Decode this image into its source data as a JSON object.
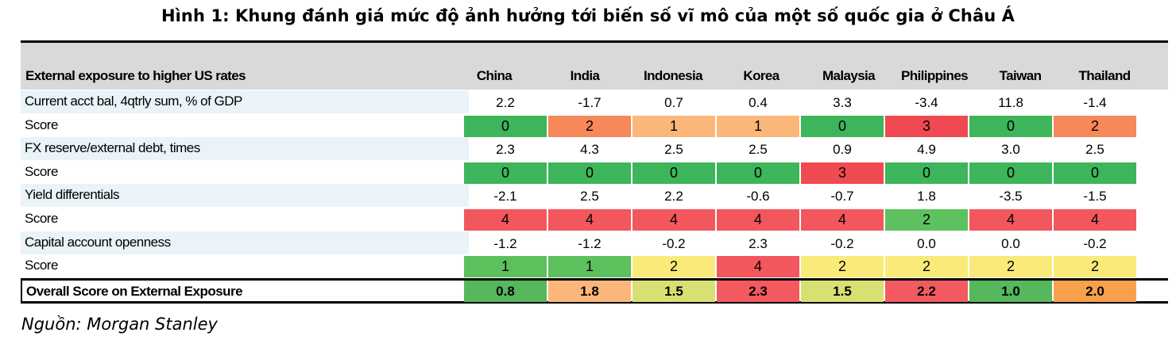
{
  "title": "Hình 1: Khung đánh giá mức độ ảnh hưởng tới biến số vĩ mô của một số quốc gia ở Châu Á",
  "source": "Nguồn: Morgan Stanley",
  "colors": {
    "score_0": "#3cb55b",
    "score_1": "#5cc05d",
    "score_2_orange": "#f7885a",
    "score_1_peach": "#fbb779",
    "score_3": "#ef4a52",
    "score_4": "#f2575d",
    "score_2_yellow": "#f9ea7a",
    "score_2_green": "#5ec15f",
    "overall_green": "#55b85c",
    "overall_orange": "#fbb77a",
    "overall_yellow": "#d8e072",
    "overall_red": "#f25a5f",
    "overall_amber": "#f8a14c",
    "header_bg": "#d9d9d9",
    "label_shade": "#eaf3f8"
  },
  "table": {
    "header_label": "External exposure to higher US rates",
    "columns": [
      "China",
      "India",
      "Indonesia",
      "Korea",
      "Malaysia",
      "Philippines",
      "Taiwan",
      "Thailand"
    ],
    "rows": [
      {
        "label": "Current acct bal, 4qtrly sum, % of GDP",
        "values": [
          "2.2",
          "-1.7",
          "0.7",
          "0.4",
          "3.3",
          "-3.4",
          "11.8",
          "-1.4"
        ]
      },
      {
        "label": "Score",
        "values": [
          "0",
          "2",
          "1",
          "1",
          "0",
          "3",
          "0",
          "2"
        ],
        "colors": [
          "#3cb55b",
          "#f7885a",
          "#fbb779",
          "#fbb779",
          "#3cb55b",
          "#ef4a52",
          "#3cb55b",
          "#f7885a"
        ]
      },
      {
        "label": "FX reserve/external debt, times",
        "values": [
          "2.3",
          "4.3",
          "2.5",
          "2.5",
          "0.9",
          "4.9",
          "3.0",
          "2.5"
        ]
      },
      {
        "label": "Score",
        "values": [
          "0",
          "0",
          "0",
          "0",
          "3",
          "0",
          "0",
          "0"
        ],
        "colors": [
          "#3cb55b",
          "#3cb55b",
          "#3cb55b",
          "#3cb55b",
          "#ef4a52",
          "#3cb55b",
          "#3cb55b",
          "#3cb55b"
        ]
      },
      {
        "label": "Yield differentials",
        "values": [
          "-2.1",
          "2.5",
          "2.2",
          "-0.6",
          "-0.7",
          "1.8",
          "-3.5",
          "-1.5"
        ]
      },
      {
        "label": "Score",
        "values": [
          "4",
          "4",
          "4",
          "4",
          "4",
          "2",
          "4",
          "4"
        ],
        "colors": [
          "#f2575d",
          "#f2575d",
          "#f2575d",
          "#f2575d",
          "#f2575d",
          "#5ec15f",
          "#f2575d",
          "#f2575d"
        ]
      },
      {
        "label": "Capital account openness",
        "values": [
          "-1.2",
          "-1.2",
          "-0.2",
          "2.3",
          "-0.2",
          "0.0",
          "0.0",
          "-0.2"
        ]
      },
      {
        "label": "Score",
        "values": [
          "1",
          "1",
          "2",
          "4",
          "2",
          "2",
          "2",
          "2"
        ],
        "colors": [
          "#5cc05d",
          "#5cc05d",
          "#f9ea7a",
          "#f2575d",
          "#f9ea7a",
          "#f9ea7a",
          "#f9ea7a",
          "#f9ea7a"
        ]
      }
    ],
    "overall": {
      "label": "Overall Score on External Exposure",
      "values": [
        "0.8",
        "1.8",
        "1.5",
        "2.3",
        "1.5",
        "2.2",
        "1.0",
        "2.0"
      ],
      "colors": [
        "#55b85c",
        "#fbb77a",
        "#d8e072",
        "#f25a5f",
        "#d8e072",
        "#f25a5f",
        "#55b85c",
        "#f8a14c"
      ]
    }
  }
}
